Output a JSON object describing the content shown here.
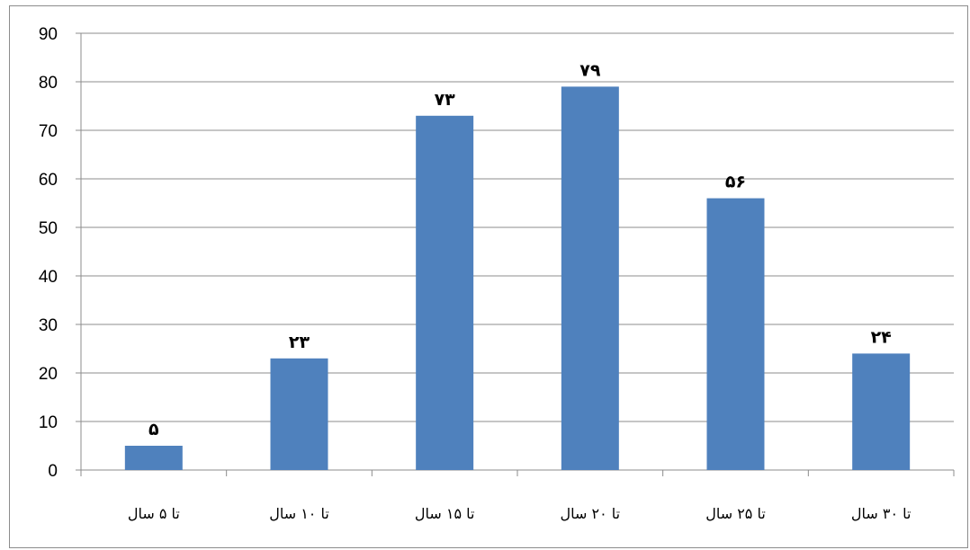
{
  "chart_data": {
    "type": "bar",
    "categories": [
      "تا ۵ سال",
      "تا ۱۰ سال",
      "تا ۱۵ سال",
      "تا ۲۰ سال",
      "تا ۲۵ سال",
      "تا ۳۰ سال"
    ],
    "values": [
      5,
      23,
      73,
      79,
      56,
      24
    ],
    "data_labels": [
      "۵",
      "۲۳",
      "۷۳",
      "۷۹",
      "۵۶",
      "۲۴"
    ],
    "ylim": [
      0,
      90
    ],
    "yticks": [
      0,
      10,
      20,
      30,
      40,
      50,
      60,
      70,
      80,
      90
    ],
    "grid": true,
    "legend": "none",
    "bar_color": "#4f81bd",
    "title": "",
    "xlabel": "",
    "ylabel": ""
  }
}
